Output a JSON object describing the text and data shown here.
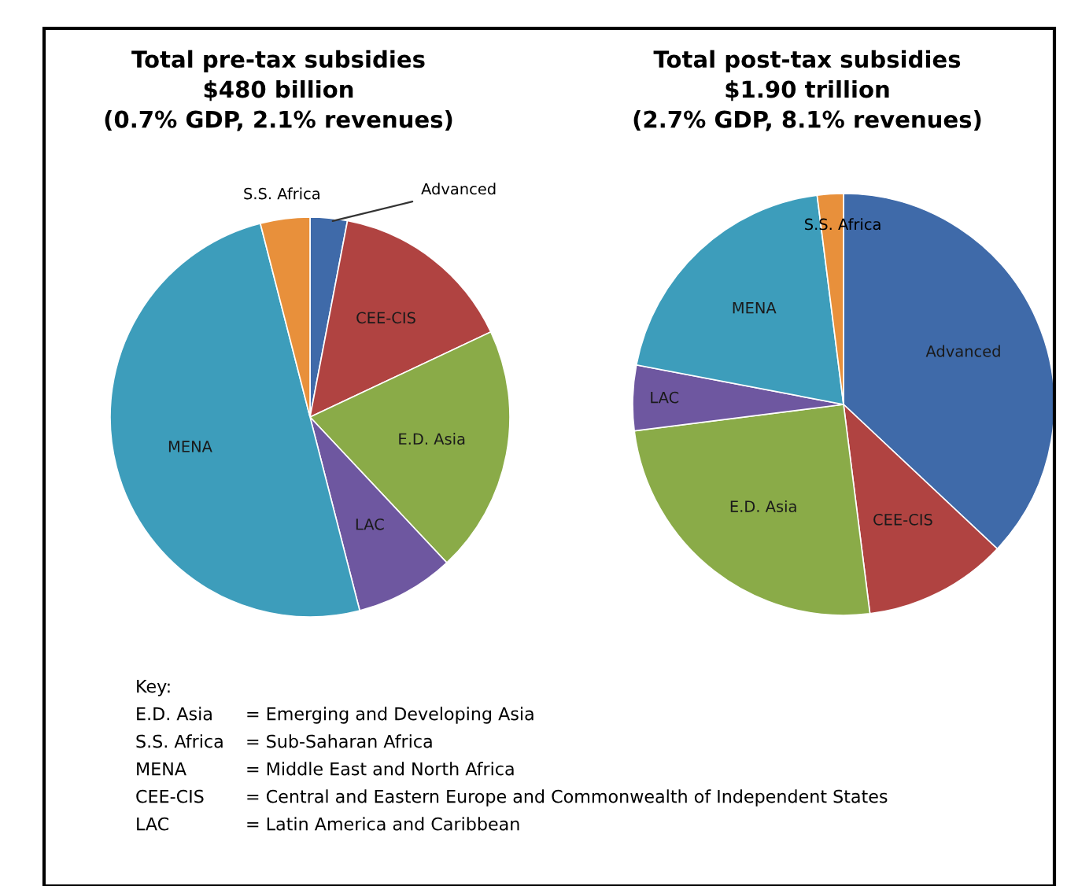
{
  "chart_data": [
    {
      "type": "pie",
      "title": "Total pre-tax subsidies\n$480 billion\n(0.7% GDP, 2.1% revenues)",
      "categories": [
        "Advanced",
        "CEE-CIS",
        "E.D. Asia",
        "LAC",
        "MENA",
        "S.S. Africa"
      ],
      "values": [
        3,
        15,
        20,
        8,
        50,
        4
      ],
      "colors": [
        "#3f6aa9",
        "#b04341",
        "#8aab48",
        "#6e57a0",
        "#3d9dbb",
        "#e8903b"
      ],
      "annotations": [
        "Key:",
        "E.D. Asia = Emerging and Developing Asia",
        "S.S. Africa = Sub-Saharan Africa",
        "MENA = Middle East and North Africa",
        "CEE-CIS = Central and Eastern Europe and Commonwealth of Independent States",
        "LAC = Latin America and Caribbean"
      ]
    },
    {
      "type": "pie",
      "title": "Total post-tax subsidies\n$1.90 trillion\n(2.7% GDP, 8.1% revenues)",
      "categories": [
        "Advanced",
        "CEE-CIS",
        "E.D. Asia",
        "LAC",
        "MENA",
        "S.S. Africa"
      ],
      "values": [
        37,
        11,
        25,
        5,
        20,
        2
      ],
      "colors": [
        "#3f6aa9",
        "#b04341",
        "#8aab48",
        "#6e57a0",
        "#3d9dbb",
        "#e8903b"
      ]
    }
  ]
}
